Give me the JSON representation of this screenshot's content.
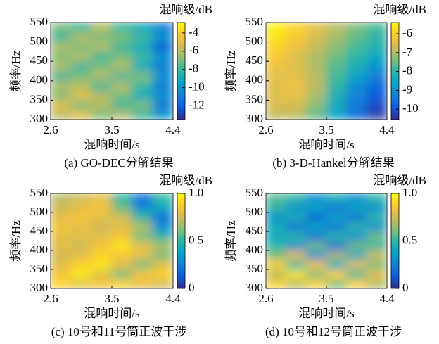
{
  "chart_data": [
    {
      "type": "heatmap",
      "caption": "(a) GO-DEC分解结果",
      "xlabel": "混响时间/s",
      "ylabel": "频率/Hz",
      "colorbar_label": "混响级/dB",
      "xlim": [
        2.6,
        4.4
      ],
      "xticks": [
        2.6,
        3.5,
        4.4
      ],
      "ylim": [
        300,
        550
      ],
      "yticks": [
        300,
        350,
        400,
        450,
        500,
        550
      ],
      "zlim": [
        -13.5,
        -2.85
      ],
      "zticks": [
        -4,
        -6,
        -8,
        -10,
        -12
      ],
      "colorscale": [
        "#352a87",
        "#0f5cdd",
        "#1481d6",
        "#06a4ca",
        "#2eb7a4",
        "#87bf77",
        "#d1bb59",
        "#fec832",
        "#f9fb0e"
      ],
      "x": [
        2.75,
        3.05,
        3.35,
        3.65,
        3.95,
        4.25
      ],
      "y": [
        312.5,
        337.5,
        362.5,
        387.5,
        412.5,
        437.5,
        462.5,
        487.5,
        512.5,
        537.5
      ],
      "z": [
        [
          -6,
          -5,
          -7,
          -6,
          -8,
          -10
        ],
        [
          -5,
          -7,
          -6,
          -8,
          -7,
          -11
        ],
        [
          -7,
          -5,
          -6,
          -7,
          -9,
          -10
        ],
        [
          -6,
          -6,
          -8,
          -6,
          -8,
          -11
        ],
        [
          -8,
          -7,
          -6,
          -8,
          -7,
          -10
        ],
        [
          -6,
          -8,
          -7,
          -6,
          -9,
          -11
        ],
        [
          -7,
          -6,
          -8,
          -7,
          -8,
          -10
        ],
        [
          -6,
          -7,
          -6,
          -8,
          -9,
          -12
        ],
        [
          -8,
          -6,
          -7,
          -7,
          -8,
          -10
        ],
        [
          -7,
          -8,
          -6,
          -8,
          -9,
          -11
        ]
      ]
    },
    {
      "type": "heatmap",
      "caption": "(b) 3-D-Hankel分解结果",
      "xlabel": "混响时间/s",
      "ylabel": "频率/Hz",
      "colorbar_label": "混响级/dB",
      "xlim": [
        2.6,
        4.4
      ],
      "xticks": [
        2.6,
        3.5,
        4.4
      ],
      "ylim": [
        300,
        550
      ],
      "yticks": [
        300,
        350,
        400,
        450,
        500,
        550
      ],
      "zlim": [
        -10.55,
        -5.4
      ],
      "zticks": [
        -6,
        -7,
        -8,
        -9,
        -10
      ],
      "colorscale": [
        "#352a87",
        "#0f5cdd",
        "#1481d6",
        "#06a4ca",
        "#2eb7a4",
        "#87bf77",
        "#d1bb59",
        "#fec832",
        "#f9fb0e"
      ],
      "x": [
        2.75,
        3.05,
        3.35,
        3.65,
        3.95,
        4.25
      ],
      "y": [
        312.5,
        337.5,
        362.5,
        387.5,
        412.5,
        437.5,
        462.5,
        487.5,
        512.5,
        537.5
      ],
      "z": [
        [
          -6.8,
          -6.9,
          -7.6,
          -8.6,
          -9.6,
          -10.3
        ],
        [
          -6.6,
          -6.6,
          -7.3,
          -8.4,
          -9.4,
          -10.1
        ],
        [
          -6.5,
          -6.4,
          -7.0,
          -8.2,
          -9.2,
          -9.9
        ],
        [
          -6.5,
          -6.3,
          -6.9,
          -8.0,
          -9.0,
          -9.7
        ],
        [
          -6.4,
          -6.4,
          -6.9,
          -7.8,
          -8.6,
          -9.3
        ],
        [
          -6.3,
          -6.5,
          -7.0,
          -7.7,
          -8.3,
          -8.9
        ],
        [
          -6.1,
          -6.5,
          -7.0,
          -7.5,
          -8.0,
          -8.5
        ],
        [
          -5.9,
          -6.3,
          -6.8,
          -7.3,
          -7.8,
          -8.2
        ],
        [
          -5.7,
          -6.1,
          -6.6,
          -7.1,
          -7.6,
          -8.0
        ],
        [
          -5.6,
          -5.9,
          -6.4,
          -6.9,
          -7.4,
          -7.8
        ]
      ]
    },
    {
      "type": "heatmap",
      "caption": "(c) 10号和11号筒正波干涉",
      "xlabel": "混响时间/s",
      "ylabel": "频率/Hz",
      "colorbar_label": "混响级/dB",
      "xlim": [
        2.6,
        4.4
      ],
      "xticks": [
        2.6,
        3.5,
        4.4
      ],
      "ylim": [
        300,
        550
      ],
      "yticks": [
        300,
        350,
        400,
        450,
        500,
        550
      ],
      "zlim": [
        0,
        1
      ],
      "zticks": [
        {
          "value": 1,
          "label": "1.0"
        },
        0.5,
        0
      ],
      "colorscale": [
        "#352a87",
        "#0f5cdd",
        "#1481d6",
        "#06a4ca",
        "#2eb7a4",
        "#87bf77",
        "#d1bb59",
        "#fec832",
        "#f9fb0e"
      ],
      "x": [
        2.75,
        3.05,
        3.35,
        3.65,
        3.95,
        4.25
      ],
      "y": [
        312.5,
        337.5,
        362.5,
        387.5,
        412.5,
        437.5,
        462.5,
        487.5,
        512.5,
        537.5
      ],
      "z": [
        [
          0.9,
          0.8,
          0.85,
          0.9,
          0.8,
          0.75
        ],
        [
          0.85,
          0.95,
          0.8,
          0.6,
          0.85,
          0.9
        ],
        [
          0.8,
          0.9,
          0.95,
          0.8,
          0.6,
          0.8
        ],
        [
          0.75,
          0.8,
          0.9,
          0.85,
          0.8,
          0.6
        ],
        [
          0.8,
          0.75,
          0.85,
          0.95,
          0.8,
          0.7
        ],
        [
          0.8,
          0.8,
          0.8,
          0.85,
          0.6,
          0.5
        ],
        [
          0.85,
          0.8,
          0.75,
          0.8,
          0.7,
          0.3
        ],
        [
          0.8,
          0.85,
          0.8,
          0.75,
          0.5,
          0.2
        ],
        [
          0.75,
          0.8,
          0.85,
          0.6,
          0.3,
          0.4
        ],
        [
          0.7,
          0.75,
          0.8,
          0.5,
          0.2,
          0.5
        ]
      ]
    },
    {
      "type": "heatmap",
      "caption": "(d) 10号和12号筒正波干涉",
      "xlabel": "混响时间/s",
      "ylabel": "频率/Hz",
      "colorbar_label": "混响级/dB",
      "xlim": [
        2.6,
        4.4
      ],
      "xticks": [
        2.6,
        3.5,
        4.4
      ],
      "ylim": [
        300,
        550
      ],
      "yticks": [
        300,
        350,
        400,
        450,
        500,
        550
      ],
      "zlim": [
        0,
        1
      ],
      "zticks": [
        {
          "value": 1,
          "label": "1.0"
        },
        0.5,
        0
      ],
      "colorscale": [
        "#352a87",
        "#0f5cdd",
        "#1481d6",
        "#06a4ca",
        "#2eb7a4",
        "#87bf77",
        "#d1bb59",
        "#fec832",
        "#f9fb0e"
      ],
      "x": [
        2.75,
        3.05,
        3.35,
        3.65,
        3.95,
        4.25
      ],
      "y": [
        312.5,
        337.5,
        362.5,
        387.5,
        412.5,
        437.5,
        462.5,
        487.5,
        512.5,
        537.5
      ],
      "z": [
        [
          0.9,
          0.7,
          0.9,
          0.6,
          0.9,
          0.7
        ],
        [
          0.7,
          0.95,
          0.6,
          0.9,
          0.5,
          0.8
        ],
        [
          0.9,
          0.5,
          0.85,
          0.4,
          0.8,
          0.6
        ],
        [
          0.6,
          0.8,
          0.3,
          0.7,
          0.4,
          0.75
        ],
        [
          0.5,
          0.3,
          0.6,
          0.2,
          0.6,
          0.5
        ],
        [
          0.4,
          0.5,
          0.2,
          0.5,
          0.3,
          0.6
        ],
        [
          0.45,
          0.2,
          0.4,
          0.2,
          0.5,
          0.3
        ],
        [
          0.3,
          0.45,
          0.15,
          0.4,
          0.2,
          0.5
        ],
        [
          0.5,
          0.3,
          0.4,
          0.2,
          0.4,
          0.3
        ],
        [
          0.55,
          0.5,
          0.3,
          0.45,
          0.3,
          0.5
        ]
      ]
    }
  ]
}
